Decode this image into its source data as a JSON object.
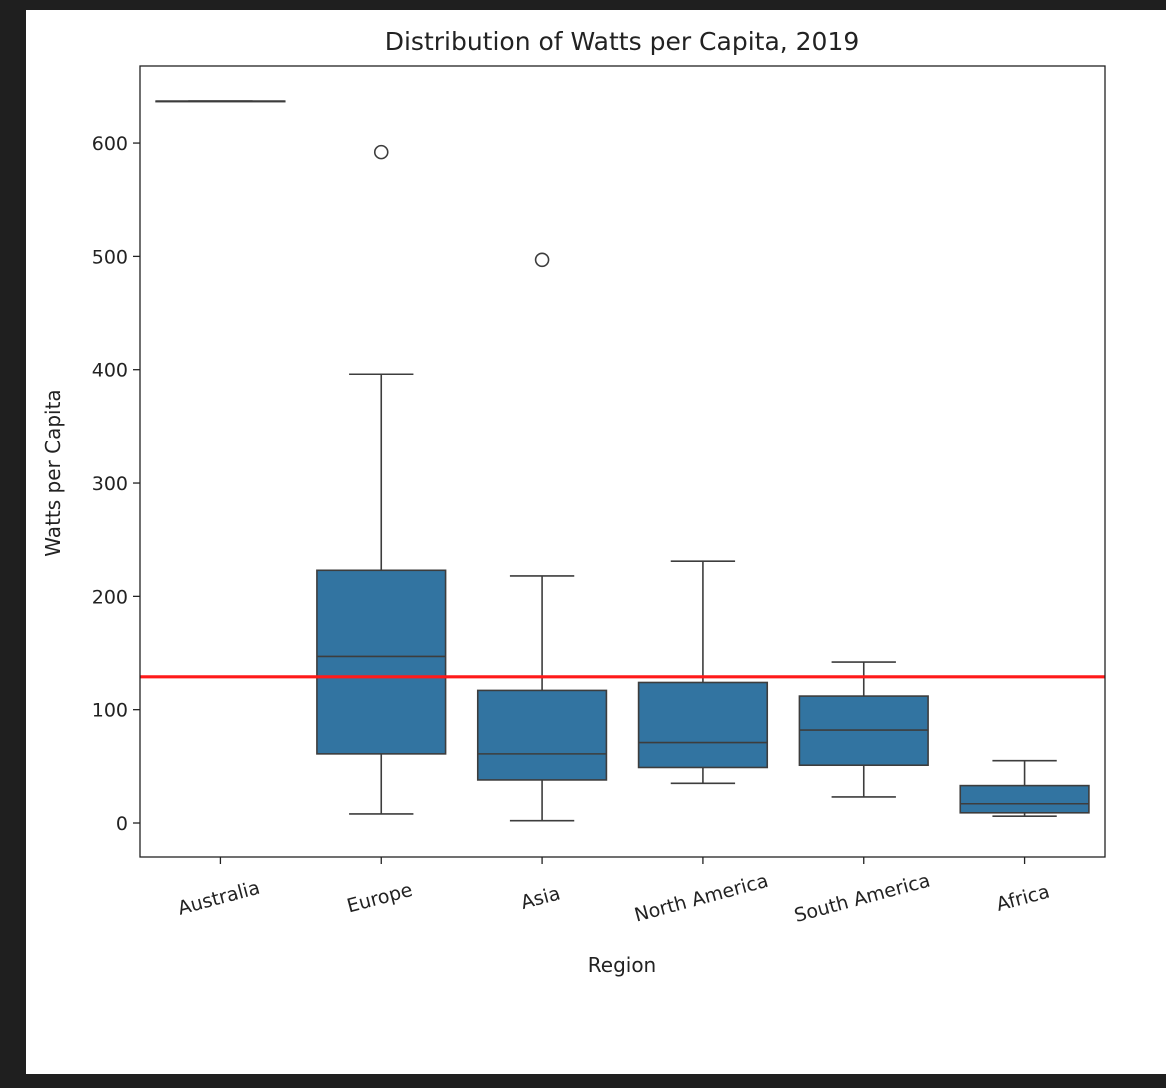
{
  "chart_data": {
    "type": "box",
    "title": "Distribution of Watts per Capita, 2019",
    "xlabel": "Region",
    "ylabel": "Watts per Capita",
    "categories": [
      "Australia",
      "Europe",
      "Asia",
      "North America",
      "South America",
      "Africa"
    ],
    "ylim": [
      -30,
      668
    ],
    "yticks": [
      0,
      100,
      200,
      300,
      400,
      500,
      600
    ],
    "grid": false,
    "box_color": "#3274a1",
    "edge_color": "#3d3d3d",
    "reference_line": {
      "value": 129,
      "color": "#ff1a1a"
    },
    "boxes": [
      {
        "category": "Australia",
        "whisker_low": 637,
        "q1": 637,
        "median": 637,
        "q3": 637,
        "whisker_high": 637,
        "outliers": []
      },
      {
        "category": "Europe",
        "whisker_low": 8,
        "q1": 61,
        "median": 147,
        "q3": 223,
        "whisker_high": 396,
        "outliers": [
          592
        ]
      },
      {
        "category": "Asia",
        "whisker_low": 2,
        "q1": 38,
        "median": 61,
        "q3": 117,
        "whisker_high": 218,
        "outliers": [
          497
        ]
      },
      {
        "category": "North America",
        "whisker_low": 35,
        "q1": 49,
        "median": 71,
        "q3": 124,
        "whisker_high": 231,
        "outliers": []
      },
      {
        "category": "South America",
        "whisker_low": 23,
        "q1": 51,
        "median": 82,
        "q3": 112,
        "whisker_high": 142,
        "outliers": []
      },
      {
        "category": "Africa",
        "whisker_low": 6,
        "q1": 9,
        "median": 17,
        "q3": 33,
        "whisker_high": 55,
        "outliers": []
      }
    ]
  }
}
